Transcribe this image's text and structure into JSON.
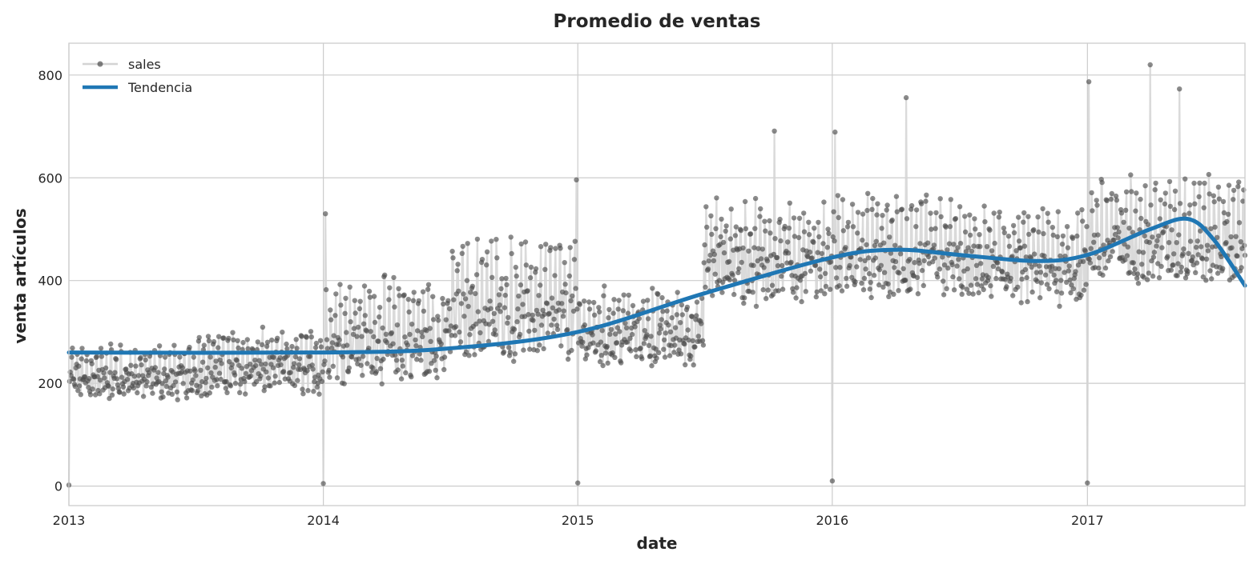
{
  "chart_data": {
    "type": "line",
    "title": "Promedio de ventas",
    "xlabel": "date",
    "ylabel": "venta artículos",
    "xlim": [
      "2013-01-01",
      "2017-08-15"
    ],
    "ylim": [
      -38,
      862
    ],
    "x_ticks": [
      "2013-01-01",
      "2014-01-01",
      "2015-01-01",
      "2016-01-01",
      "2017-01-01"
    ],
    "x_tick_labels": [
      "2013",
      "2014",
      "2015",
      "2016",
      "2017"
    ],
    "y_ticks": [
      0,
      200,
      400,
      600,
      800
    ],
    "y_tick_labels": [
      "0",
      "200",
      "400",
      "600",
      "800"
    ],
    "grid": true,
    "legend_position": "top-left",
    "series": [
      {
        "name": "sales",
        "style": "line-with-points",
        "line_color": "#d3d3d3",
        "marker_color": "#4d4d4d",
        "daily_values_by_segment": [
          {
            "from": "2013-01-01",
            "to": "2013-06-30",
            "low": 175,
            "high": 270
          },
          {
            "from": "2013-07-01",
            "to": "2013-12-31",
            "low": 185,
            "high": 300
          },
          {
            "from": "2014-01-01",
            "to": "2014-06-30",
            "low": 210,
            "high": 400
          },
          {
            "from": "2014-07-01",
            "to": "2014-12-31",
            "low": 250,
            "high": 480
          },
          {
            "from": "2015-01-01",
            "to": "2015-06-30",
            "low": 240,
            "high": 380
          },
          {
            "from": "2015-07-01",
            "to": "2015-12-31",
            "low": 360,
            "high": 560
          },
          {
            "from": "2016-01-01",
            "to": "2016-06-30",
            "low": 370,
            "high": 560
          },
          {
            "from": "2016-07-01",
            "to": "2016-12-31",
            "low": 360,
            "high": 540
          },
          {
            "from": "2017-01-01",
            "to": "2017-08-15",
            "low": 400,
            "high": 600
          }
        ],
        "outliers": [
          {
            "x": "2013-01-01",
            "y": 2
          },
          {
            "x": "2014-01-01",
            "y": 5
          },
          {
            "x": "2015-01-01",
            "y": 6
          },
          {
            "x": "2016-01-01",
            "y": 10
          },
          {
            "x": "2017-01-01",
            "y": 6
          },
          {
            "x": "2014-01-04",
            "y": 530
          },
          {
            "x": "2014-12-30",
            "y": 596
          },
          {
            "x": "2015-10-10",
            "y": 691
          },
          {
            "x": "2016-01-05",
            "y": 689
          },
          {
            "x": "2016-04-16",
            "y": 756
          },
          {
            "x": "2017-01-03",
            "y": 787
          },
          {
            "x": "2017-04-01",
            "y": 820
          },
          {
            "x": "2017-05-13",
            "y": 773
          }
        ]
      },
      {
        "name": "Tendencia",
        "style": "line",
        "color": "#1f77b4",
        "points": [
          {
            "x": "2013-01-01",
            "y": 260
          },
          {
            "x": "2014-01-01",
            "y": 260
          },
          {
            "x": "2014-07-01",
            "y": 268
          },
          {
            "x": "2015-01-01",
            "y": 300
          },
          {
            "x": "2015-07-01",
            "y": 375
          },
          {
            "x": "2016-01-01",
            "y": 445
          },
          {
            "x": "2016-04-01",
            "y": 460
          },
          {
            "x": "2016-07-01",
            "y": 450
          },
          {
            "x": "2016-10-20",
            "y": 438
          },
          {
            "x": "2017-01-01",
            "y": 450
          },
          {
            "x": "2017-04-01",
            "y": 500
          },
          {
            "x": "2017-05-25",
            "y": 520
          },
          {
            "x": "2017-07-01",
            "y": 480
          },
          {
            "x": "2017-08-15",
            "y": 390
          }
        ]
      }
    ]
  }
}
